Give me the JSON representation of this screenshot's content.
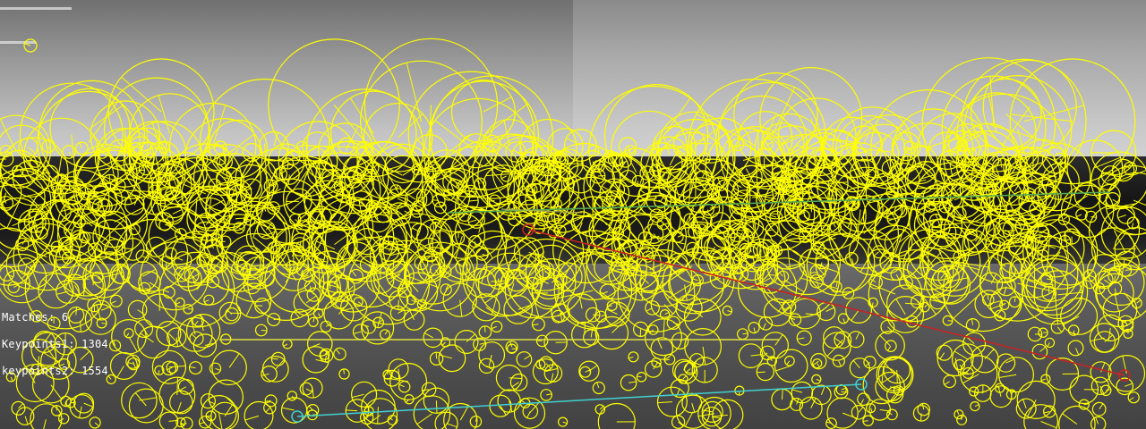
{
  "stats": {
    "matches": "Matches: 6",
    "keypoints1": "Keypoints1: 1304",
    "keypoints2": "keypoints2: 1554"
  },
  "colors": {
    "keypoint": "#ffff00",
    "match_lines": [
      "#ffff00",
      "#00cccc",
      "#cc2020",
      "#55aa55"
    ]
  }
}
